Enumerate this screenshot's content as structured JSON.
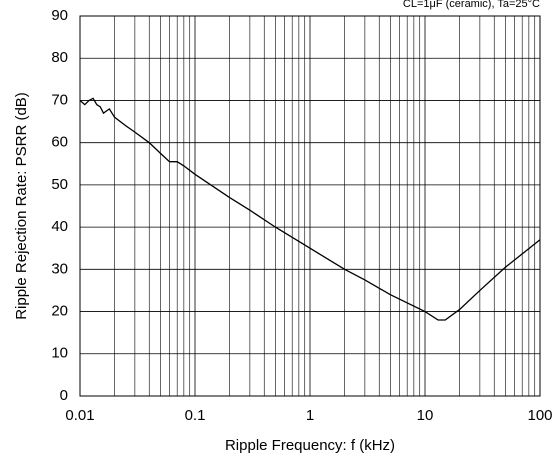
{
  "chart_data": {
    "type": "line",
    "annotation": "CL=1μF (ceramic), Ta=25°C",
    "x_label": "Ripple Frequency: f (kHz)",
    "y_label": "Ripple Rejection Rate: PSRR (dB)",
    "x": [
      0.01,
      0.011,
      0.012,
      0.013,
      0.014,
      0.015,
      0.016,
      0.018,
      0.02,
      0.025,
      0.03,
      0.04,
      0.05,
      0.06,
      0.07,
      0.08,
      0.1,
      0.2,
      0.3,
      0.5,
      1,
      2,
      3,
      5,
      10,
      13,
      15,
      20,
      30,
      50,
      100
    ],
    "values": [
      70,
      69,
      70,
      70.5,
      69,
      68.5,
      67,
      68,
      66,
      64,
      62.5,
      60,
      57.5,
      55.5,
      55.5,
      54.5,
      52.5,
      47,
      44,
      40,
      35,
      30,
      27.5,
      24,
      20,
      18,
      18,
      20.5,
      25,
      30.5,
      37
    ],
    "color": "#000000",
    "x_log": true,
    "xlim": [
      0.01,
      100
    ],
    "xticks": [
      0.01,
      0.1,
      1,
      10,
      100
    ],
    "x_minor_ticks": [
      0.02,
      0.03,
      0.04,
      0.05,
      0.06,
      0.07,
      0.08,
      0.09,
      0.2,
      0.3,
      0.4,
      0.5,
      0.6,
      0.7,
      0.8,
      0.9,
      2,
      3,
      4,
      5,
      6,
      7,
      8,
      9,
      20,
      30,
      40,
      50,
      60,
      70,
      80,
      90
    ],
    "ylim": [
      0,
      90
    ],
    "yticks": [
      0,
      10,
      20,
      30,
      40,
      50,
      60,
      70,
      80,
      90
    ],
    "grid": true
  }
}
